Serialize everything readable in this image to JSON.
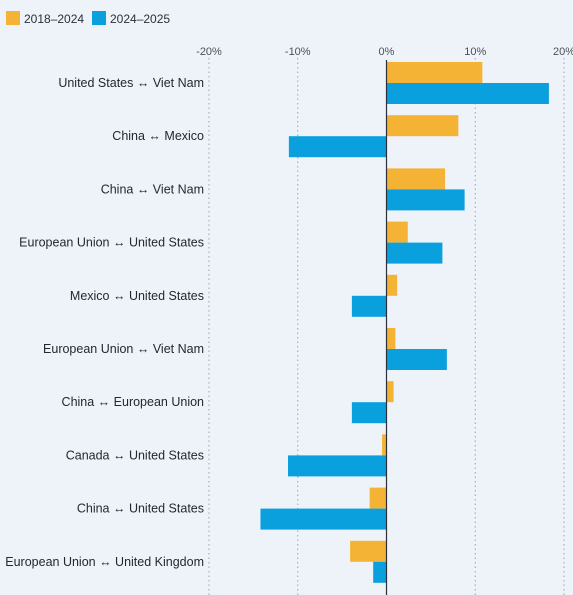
{
  "chart_data": {
    "type": "bar",
    "orientation": "horizontal",
    "xlim": [
      -20,
      20
    ],
    "xticks": [
      -20,
      -10,
      0,
      10,
      20
    ],
    "tick_labels": [
      "-20%",
      "-10%",
      "0%",
      "10%",
      "20%"
    ],
    "grid": true,
    "legend": "top-left",
    "categories": [
      "United States ↔ Viet Nam",
      "China ↔ Mexico",
      "China ↔ Viet Nam",
      "European Union ↔ United States",
      "Mexico ↔ United States",
      "European Union ↔ Viet Nam",
      "China ↔ European Union",
      "Canada ↔ United States",
      "China ↔ United States",
      "European Union ↔ United Kingdom"
    ],
    "series": [
      {
        "name": "2018–2024",
        "color": "#f5b335",
        "values": [
          10.8,
          8.1,
          6.6,
          2.4,
          1.2,
          1.0,
          0.8,
          -0.5,
          -1.9,
          -4.1
        ]
      },
      {
        "name": "2024–2025",
        "color": "#0aa0de",
        "values": [
          18.3,
          -11.0,
          8.8,
          6.3,
          -3.9,
          6.8,
          -3.9,
          -11.1,
          -14.2,
          -1.5
        ]
      }
    ]
  }
}
